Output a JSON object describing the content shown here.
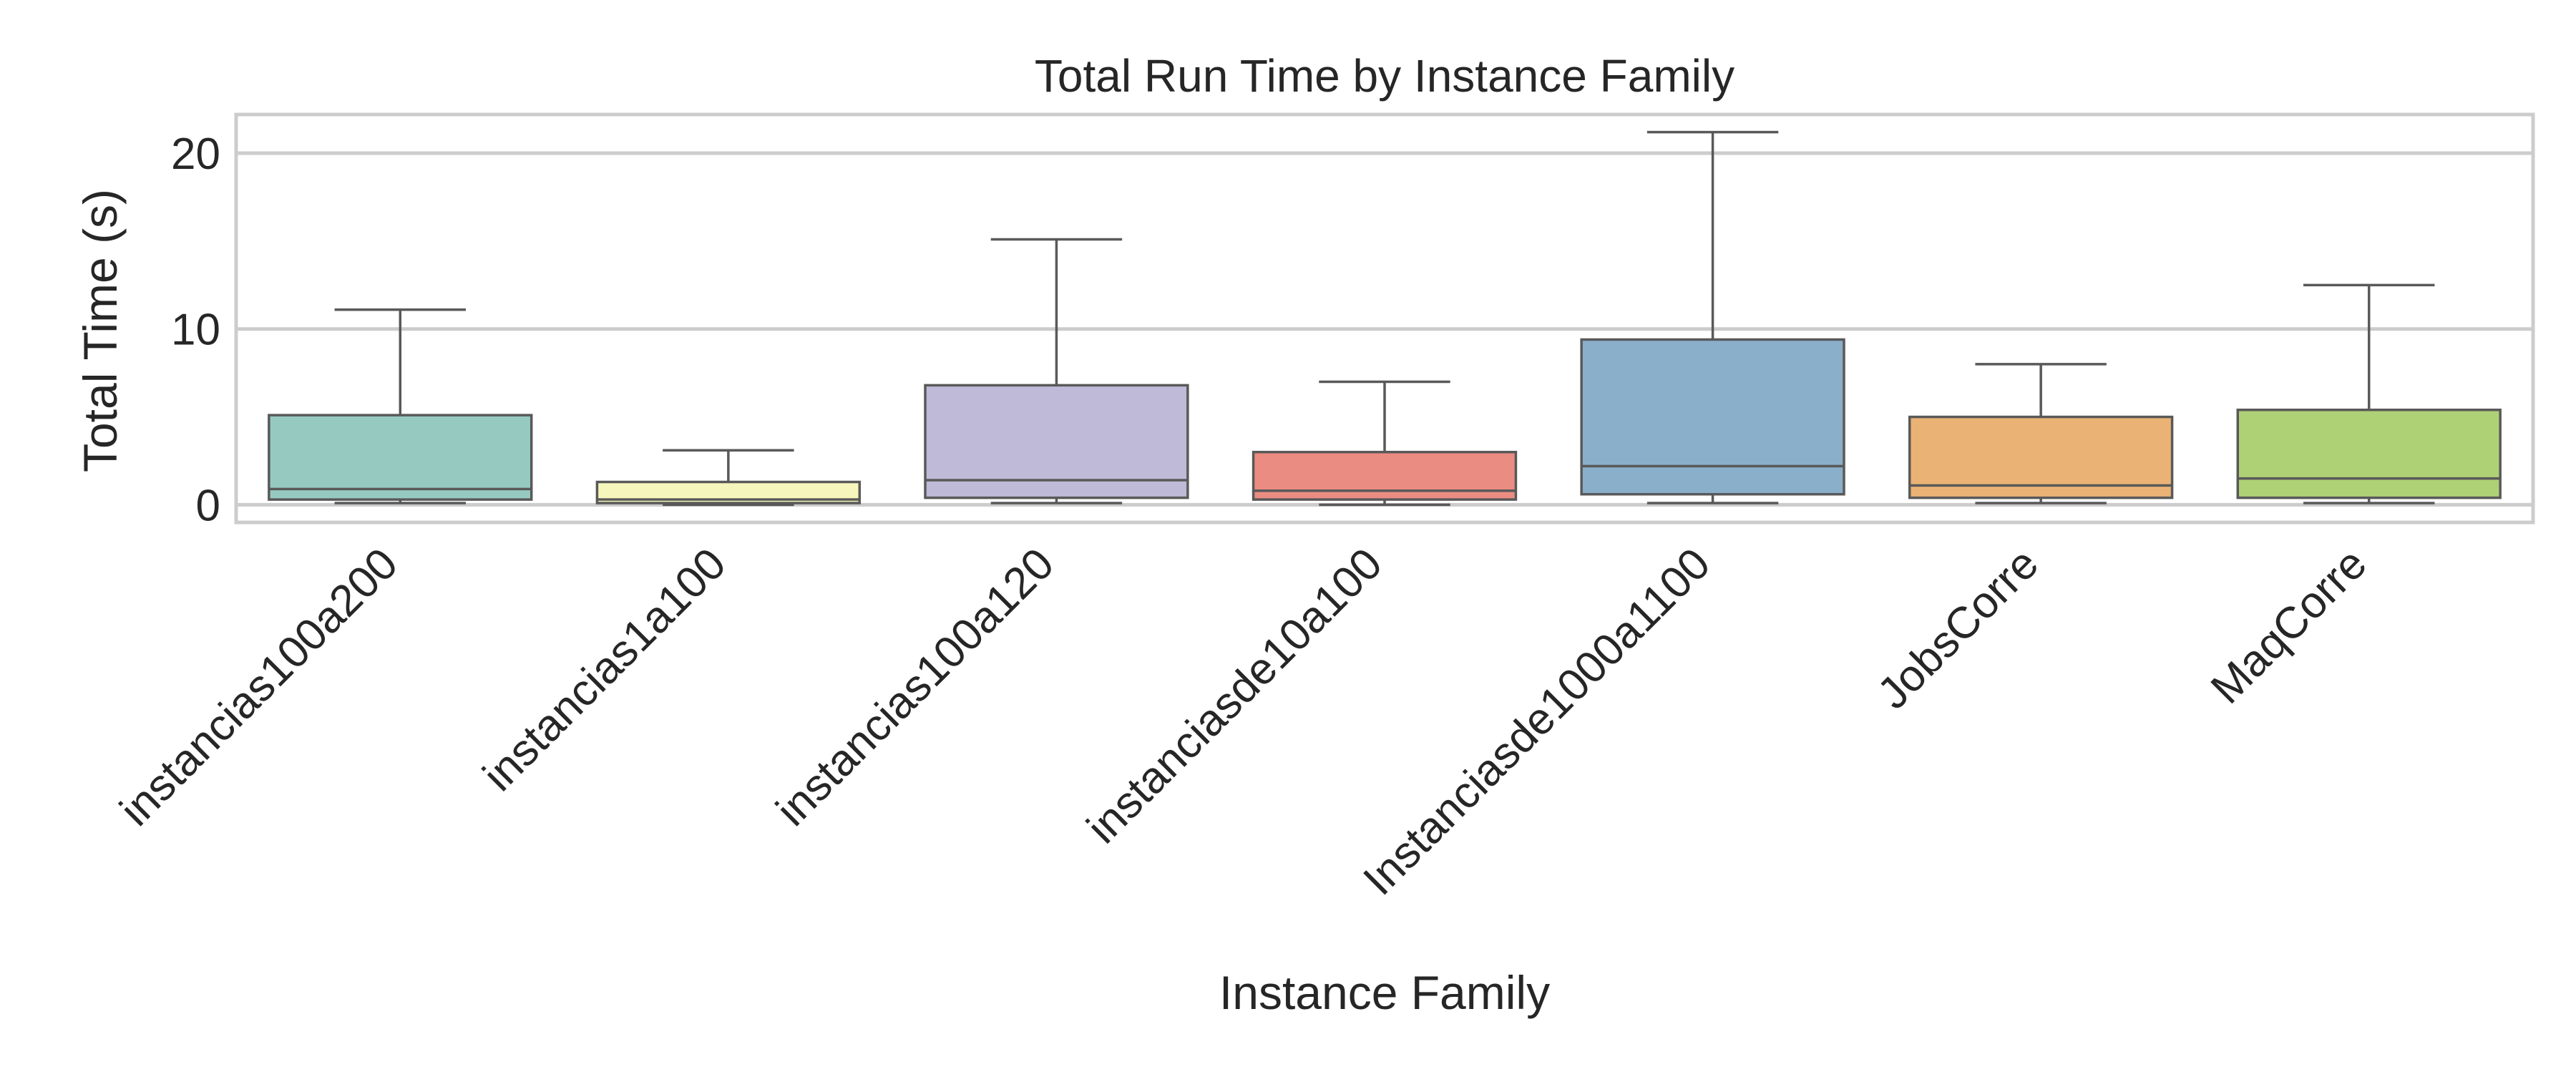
{
  "chart_data": {
    "type": "box",
    "title": "Total Run Time by Instance Family",
    "xlabel": "Instance Family",
    "ylabel": "Total Time (s)",
    "ylim": [
      -1,
      22.2
    ],
    "yticks": [
      0,
      10,
      20
    ],
    "grid": "horizontal",
    "categories": [
      "instancias100a200",
      "instancias1a100",
      "instancias100a120",
      "instanciasde10a100",
      "Instanciasde1000a1100",
      "JobsCorre",
      "MaqCorre"
    ],
    "boxes": [
      {
        "category": "instancias100a200",
        "whisker_low": 0.1,
        "q1": 0.3,
        "median": 0.9,
        "q3": 5.1,
        "whisker_high": 11.1,
        "color": "#96cac1"
      },
      {
        "category": "instancias1a100",
        "whisker_low": 0.0,
        "q1": 0.1,
        "median": 0.3,
        "q3": 1.3,
        "whisker_high": 3.1,
        "color": "#f6f6bc"
      },
      {
        "category": "instancias100a120",
        "whisker_low": 0.1,
        "q1": 0.4,
        "median": 1.4,
        "q3": 6.8,
        "whisker_high": 15.1,
        "color": "#bebad8"
      },
      {
        "category": "instanciasde10a100",
        "whisker_low": 0.0,
        "q1": 0.3,
        "median": 0.8,
        "q3": 3.0,
        "whisker_high": 7.0,
        "color": "#eb8c82"
      },
      {
        "category": "Instanciasde1000a1100",
        "whisker_low": 0.1,
        "q1": 0.6,
        "median": 2.2,
        "q3": 9.4,
        "whisker_high": 21.2,
        "color": "#8aafca"
      },
      {
        "category": "JobsCorre",
        "whisker_low": 0.1,
        "q1": 0.4,
        "median": 1.1,
        "q3": 5.0,
        "whisker_high": 8.0,
        "color": "#eab375"
      },
      {
        "category": "MaqCorre",
        "whisker_low": 0.1,
        "q1": 0.4,
        "median": 1.5,
        "q3": 5.4,
        "whisker_high": 12.5,
        "color": "#afd176"
      }
    ]
  }
}
